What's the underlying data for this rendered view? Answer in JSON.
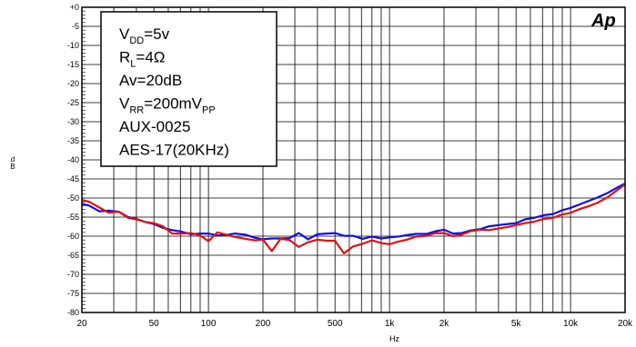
{
  "chart_data": {
    "type": "line",
    "xscale": "log",
    "xlim": [
      20,
      20000
    ],
    "ylim": [
      -80,
      0
    ],
    "grid": true,
    "xlabel": "Hz",
    "ylabel": "d B",
    "y_ticks": [
      0,
      -5,
      -10,
      -15,
      -20,
      -25,
      -30,
      -35,
      -40,
      -45,
      -50,
      -55,
      -60,
      -65,
      -70,
      -75,
      -80
    ],
    "y_tick_labels": [
      "+0",
      "-5",
      "-10",
      "-15",
      "-20",
      "-25",
      "-30",
      "-35",
      "-40",
      "-45",
      "-50",
      "-55",
      "-60",
      "-65",
      "-70",
      "-75",
      "-80"
    ],
    "x_ticks": [
      20,
      50,
      100,
      200,
      500,
      1000,
      2000,
      5000,
      10000,
      20000
    ],
    "x_tick_labels": [
      "20",
      "50",
      "100",
      "200",
      "500",
      "1k",
      "2k",
      "5k",
      "10k",
      "20k"
    ],
    "annotation_lines": [
      {
        "main": "V",
        "sub": "DD",
        "rest": "=5v"
      },
      {
        "main": "R",
        "sub": "L",
        "rest": "=4Ω"
      },
      {
        "main": "Av=20dB",
        "sub": "",
        "rest": ""
      },
      {
        "main": "V",
        "sub": "RR",
        "rest": "=200mV",
        "sub2": "PP"
      },
      {
        "main": "AUX-0025",
        "sub": "",
        "rest": ""
      },
      {
        "main": "AES-17(20KHz)",
        "sub": "",
        "rest": ""
      }
    ],
    "logo": "Ap",
    "series": [
      {
        "color": "#1010e0",
        "x": [
          20,
          22,
          25,
          28,
          32,
          36,
          40,
          45,
          50,
          56,
          63,
          71,
          80,
          90,
          100,
          112,
          125,
          140,
          160,
          180,
          200,
          224,
          250,
          280,
          315,
          355,
          400,
          450,
          500,
          560,
          630,
          710,
          800,
          900,
          1000,
          1120,
          1250,
          1400,
          1600,
          1800,
          2000,
          2240,
          2500,
          2800,
          3150,
          3550,
          4000,
          4500,
          5000,
          5600,
          6300,
          7100,
          8000,
          9000,
          10000,
          11200,
          12500,
          14000,
          16000,
          18000,
          20000
        ],
        "y": [
          -51.5,
          -52,
          -53.5,
          -53.3,
          -53.6,
          -55,
          -55.5,
          -56.3,
          -56.8,
          -57.8,
          -58.4,
          -58.8,
          -59.5,
          -59.3,
          -59.3,
          -59.8,
          -59.7,
          -59.3,
          -59.6,
          -60.4,
          -60.8,
          -60.6,
          -60.6,
          -60.5,
          -59.2,
          -60.8,
          -59.5,
          -59.3,
          -59.2,
          -59.9,
          -59.9,
          -60.7,
          -60.1,
          -60.6,
          -60.3,
          -60.1,
          -59.7,
          -59.4,
          -59.4,
          -58.7,
          -58.3,
          -59.3,
          -59.2,
          -58.5,
          -58.2,
          -57.4,
          -57.1,
          -56.8,
          -56.6,
          -55.6,
          -55.2,
          -54.5,
          -54.2,
          -53.2,
          -52.6,
          -51.7,
          -50.8,
          -49.9,
          -48.7,
          -47.3,
          -46.2
        ]
      },
      {
        "color": "#e01010",
        "x": [
          20,
          22,
          25,
          28,
          32,
          36,
          40,
          45,
          50,
          56,
          63,
          71,
          80,
          90,
          100,
          112,
          125,
          140,
          160,
          180,
          200,
          224,
          250,
          280,
          315,
          355,
          400,
          450,
          500,
          560,
          630,
          710,
          800,
          900,
          1000,
          1120,
          1250,
          1400,
          1600,
          1800,
          2000,
          2240,
          2500,
          2800,
          3150,
          3550,
          4000,
          4500,
          5000,
          5600,
          6300,
          7100,
          8000,
          9000,
          10000,
          11200,
          12500,
          14000,
          16000,
          18000,
          20000
        ],
        "y": [
          -50.5,
          -51,
          -52.5,
          -53.8,
          -53.6,
          -55.2,
          -55.6,
          -56.3,
          -56.6,
          -57.4,
          -59.3,
          -59.3,
          -59.2,
          -59.8,
          -61.3,
          -59,
          -59.6,
          -60.2,
          -60.7,
          -61.1,
          -60.9,
          -63.9,
          -60.7,
          -61,
          -62.8,
          -61.6,
          -60.9,
          -61.2,
          -61.2,
          -64.5,
          -62.7,
          -62,
          -61.1,
          -61.8,
          -62.1,
          -61.4,
          -60.9,
          -60.1,
          -59.9,
          -59.2,
          -59.2,
          -60,
          -59.6,
          -58.7,
          -58.3,
          -58.4,
          -58,
          -57.6,
          -57.1,
          -56.6,
          -56.2,
          -55.5,
          -55.2,
          -54.3,
          -53.9,
          -52.9,
          -52.2,
          -51.3,
          -49.8,
          -48,
          -46.4
        ]
      }
    ]
  }
}
